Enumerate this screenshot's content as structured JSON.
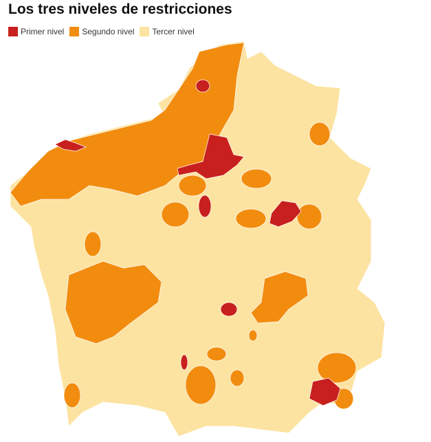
{
  "title": "Los tres niveles de restricciones",
  "legend": [
    {
      "label": "Primer nivel",
      "color": "#c8201e"
    },
    {
      "label": "Segundo nivel",
      "color": "#f28c0f"
    },
    {
      "label": "Tercer nivel",
      "color": "#fde3a1"
    }
  ]
}
